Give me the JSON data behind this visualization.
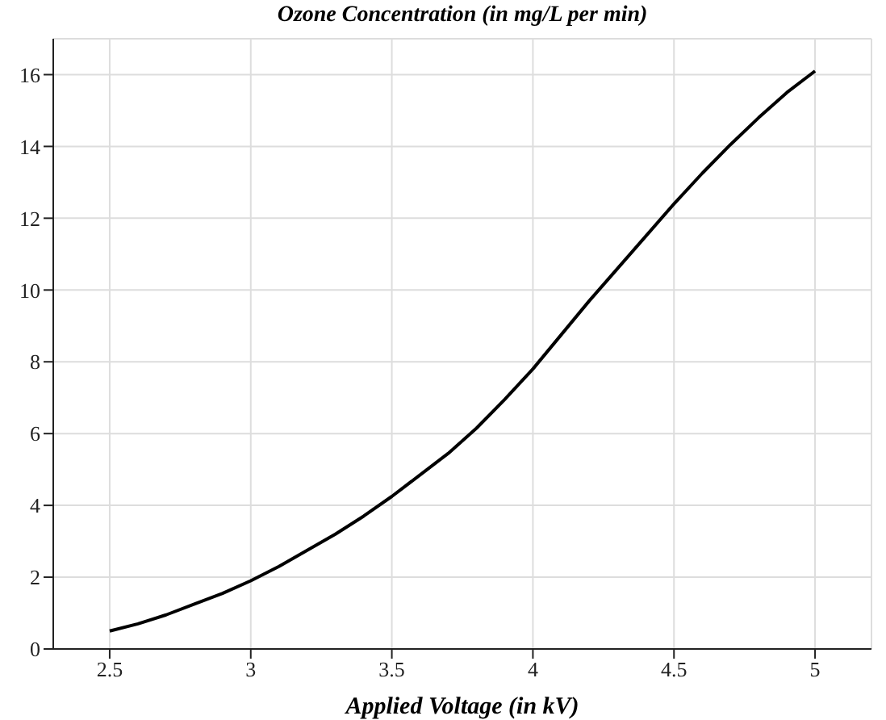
{
  "chart_data": {
    "type": "line",
    "title": "Ozone Concentration (in mg/L per min)",
    "xlabel": "Applied Voltage (in kV)",
    "x": [
      2.5,
      2.6,
      2.7,
      2.8,
      2.9,
      3.0,
      3.1,
      3.2,
      3.3,
      3.4,
      3.5,
      3.6,
      3.7,
      3.8,
      3.9,
      4.0,
      4.1,
      4.2,
      4.3,
      4.4,
      4.5,
      4.6,
      4.7,
      4.8,
      4.9,
      5.0
    ],
    "series": [
      {
        "color": "#000000",
        "values": [
          0.5,
          0.7,
          0.95,
          1.25,
          1.55,
          1.9,
          2.3,
          2.75,
          3.2,
          3.7,
          4.25,
          4.85,
          5.45,
          6.15,
          6.95,
          7.8,
          8.75,
          9.7,
          10.6,
          11.5,
          12.4,
          13.25,
          14.05,
          14.8,
          15.5,
          16.1
        ]
      }
    ],
    "xlim": [
      2.3,
      5.2
    ],
    "xticks": [
      2.5,
      3,
      3.5,
      4,
      4.5,
      5
    ],
    "ylim": [
      0,
      17
    ],
    "yticks": [
      0,
      2,
      4,
      6,
      8,
      10,
      12,
      14,
      16
    ],
    "grid": true,
    "legend": false,
    "marker": "none",
    "line_style": "solid"
  }
}
